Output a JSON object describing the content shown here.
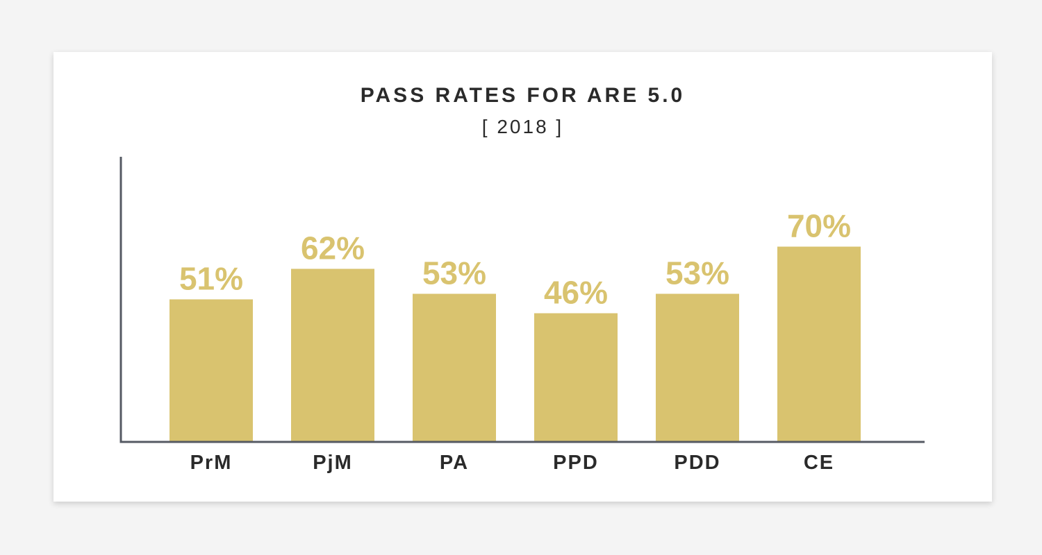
{
  "chart_data": {
    "type": "bar",
    "title": "PASS RATES FOR ARE 5.0",
    "subtitle": "[ 2018 ]",
    "categories": [
      "PrM",
      "PjM",
      "PA",
      "PPD",
      "PDD",
      "CE"
    ],
    "values": [
      51,
      62,
      53,
      46,
      53,
      70
    ],
    "data_labels": [
      "51%",
      "62%",
      "53%",
      "46%",
      "53%",
      "70%"
    ],
    "ylim": [
      0,
      100
    ],
    "xlabel": "",
    "ylabel": "",
    "grid": false,
    "legend": "none"
  },
  "colors": {
    "background": "#f4f4f4",
    "card": "#ffffff",
    "bar": "#d9c36f",
    "data_label": "#d9c36f",
    "axis": "#555a63",
    "text": "#2a2a2a"
  }
}
